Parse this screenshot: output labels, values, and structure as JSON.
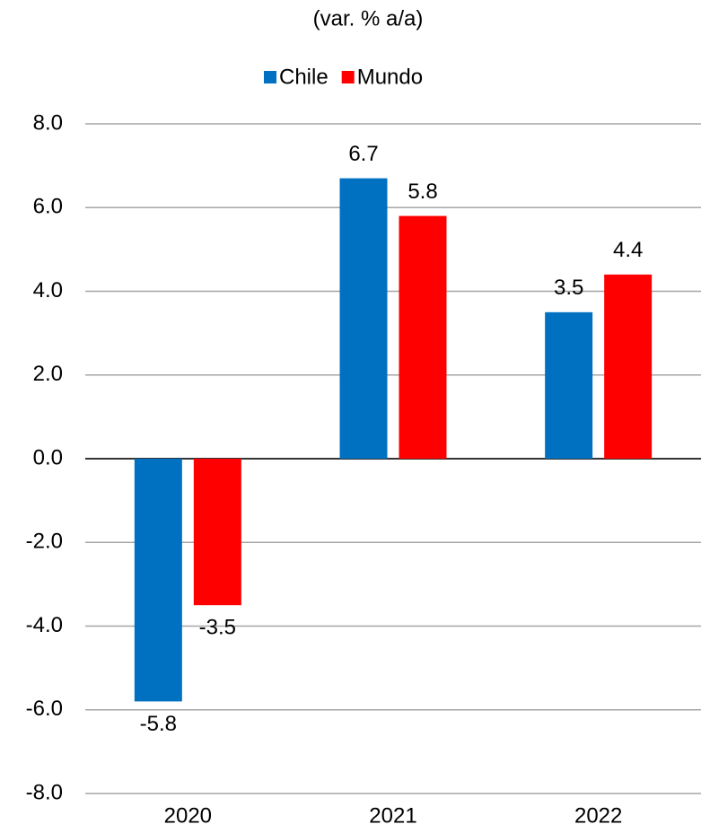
{
  "chart_data": {
    "type": "bar",
    "subtitle": "(var. % a/a)",
    "categories": [
      "2020",
      "2021",
      "2022"
    ],
    "series": [
      {
        "name": "Chile",
        "color": "#0070c0",
        "values": [
          -5.8,
          6.7,
          3.5
        ]
      },
      {
        "name": "Mundo",
        "color": "#ff0000",
        "values": [
          -3.5,
          5.8,
          4.4
        ]
      }
    ],
    "ylim": [
      -8,
      8
    ],
    "yticks": [
      {
        "value": -8,
        "label": "-8.0"
      },
      {
        "value": -6,
        "label": "-6.0"
      },
      {
        "value": -4,
        "label": "-4.0"
      },
      {
        "value": -2,
        "label": "-2.0"
      },
      {
        "value": 0,
        "label": "0.0"
      },
      {
        "value": 2,
        "label": "2.0"
      },
      {
        "value": 4,
        "label": "4.0"
      },
      {
        "value": 6,
        "label": "6.0"
      },
      {
        "value": 8,
        "label": "8.0"
      }
    ],
    "grid": true,
    "legend": "top"
  }
}
